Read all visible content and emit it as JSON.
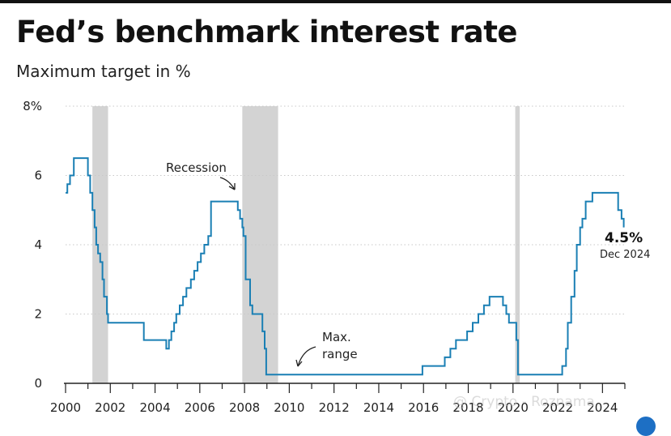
{
  "header": {
    "title": "Fed’s benchmark interest rate",
    "subtitle": "Maximum target in %"
  },
  "watermark": "@ Crypto - Roznama",
  "chart_data": {
    "type": "line",
    "interpolation": "step",
    "title": "Fed’s benchmark interest rate",
    "subtitle": "Maximum target in %",
    "xlabel": "",
    "ylabel": "",
    "xlim": [
      2000,
      2025
    ],
    "ylim": [
      0,
      8
    ],
    "x_ticks": [
      "2000",
      "2002",
      "2004",
      "2006",
      "2008",
      "2010",
      "2012",
      "2014",
      "2016",
      "2018",
      "2020",
      "2022",
      "2024"
    ],
    "y_ticks": [
      "0",
      "2",
      "4",
      "6",
      "8%"
    ],
    "grid": "horizontal dotted",
    "colors": {
      "line": "#1a7fb4",
      "recession": "#d3d3d3"
    },
    "recessions": [
      {
        "start": 2001.2,
        "end": 2001.9
      },
      {
        "start": 2007.9,
        "end": 2009.5
      },
      {
        "start": 2020.1,
        "end": 2020.3
      }
    ],
    "series": [
      {
        "x": [
          2000.0,
          2000.08,
          2000.2,
          2000.37,
          2001.0,
          2001.1,
          2001.2,
          2001.3,
          2001.37,
          2001.45,
          2001.55,
          2001.65,
          2001.72,
          2001.85,
          2001.9,
          2001.95,
          2003.5,
          2004.5,
          2004.62,
          2004.73,
          2004.85,
          2004.95,
          2005.1,
          2005.25,
          2005.4,
          2005.6,
          2005.75,
          2005.9,
          2006.05,
          2006.2,
          2006.38,
          2006.5,
          2007.7,
          2007.8,
          2007.9,
          2007.95,
          2008.05,
          2008.25,
          2008.35,
          2008.8,
          2008.9,
          2008.97,
          2015.95,
          2016.95,
          2017.2,
          2017.45,
          2017.95,
          2018.2,
          2018.45,
          2018.7,
          2018.95,
          2019.55,
          2019.7,
          2019.82,
          2020.15,
          2020.22,
          2022.2,
          2022.37,
          2022.45,
          2022.6,
          2022.75,
          2022.85,
          2023.0,
          2023.1,
          2023.25,
          2023.55,
          2024.7,
          2024.85,
          2024.95
        ],
        "y": [
          5.5,
          5.75,
          6.0,
          6.5,
          6.0,
          5.5,
          5.0,
          4.5,
          4.0,
          3.75,
          3.5,
          3.0,
          2.5,
          2.0,
          1.75,
          1.75,
          1.25,
          1.0,
          1.25,
          1.5,
          1.75,
          2.0,
          2.25,
          2.5,
          2.75,
          3.0,
          3.25,
          3.5,
          3.75,
          4.0,
          4.25,
          5.25,
          5.0,
          4.75,
          4.5,
          4.25,
          3.0,
          2.25,
          2.0,
          1.5,
          1.0,
          0.25,
          0.5,
          0.75,
          1.0,
          1.25,
          1.5,
          1.75,
          2.0,
          2.25,
          2.5,
          2.25,
          2.0,
          1.75,
          1.25,
          0.25,
          0.5,
          1.0,
          1.75,
          2.5,
          3.25,
          4.0,
          4.5,
          4.75,
          5.25,
          5.5,
          5.0,
          4.75,
          4.5
        ]
      }
    ],
    "annotations": [
      {
        "text": "Recession"
      },
      {
        "text_lines": [
          "Max.",
          "range"
        ]
      }
    ],
    "last_value": {
      "value": "4.5%",
      "date": "Dec 2024"
    }
  }
}
